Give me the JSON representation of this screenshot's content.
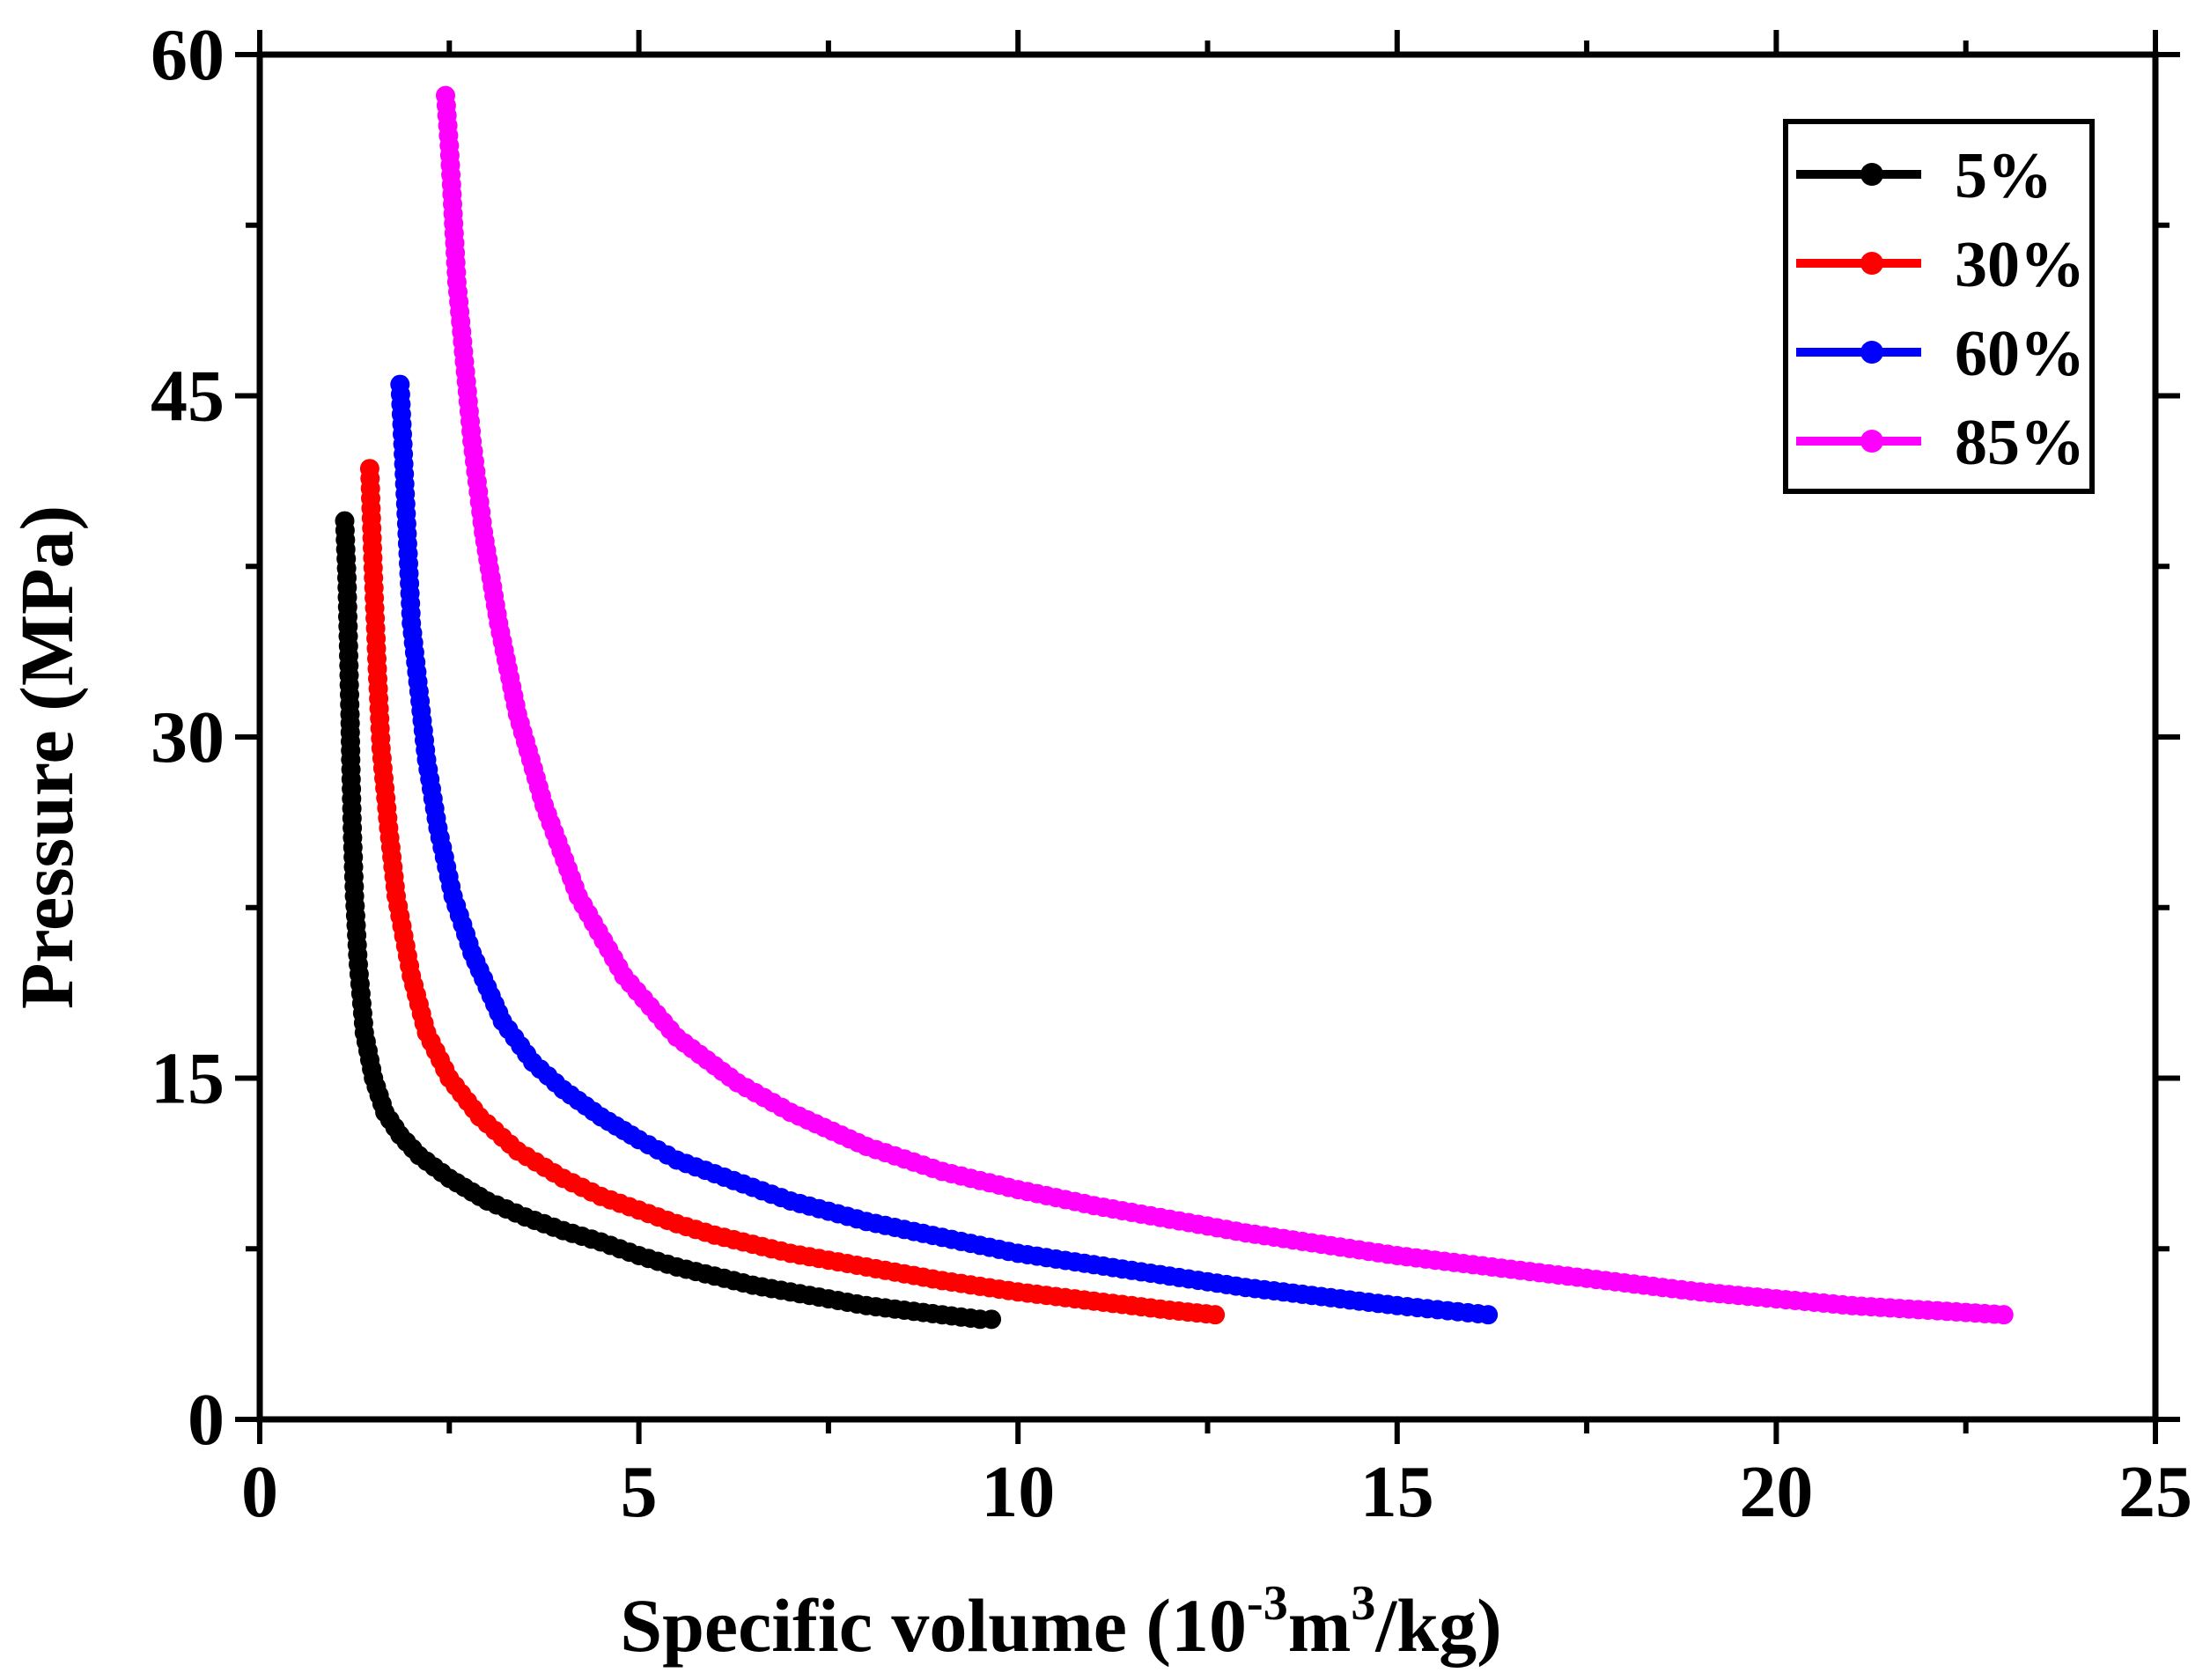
{
  "chart_data": {
    "type": "scatter",
    "title": "",
    "xlabel_main": "Specific volume (10",
    "xlabel_exp1": "-3",
    "xlabel_mid": "m",
    "xlabel_exp2": "3",
    "xlabel_end": "/kg)",
    "ylabel": "Pressure (MPa)",
    "xlim": [
      0,
      25
    ],
    "ylim": [
      0,
      60
    ],
    "xticks": [
      0,
      5,
      10,
      15,
      20,
      25
    ],
    "yticks": [
      0,
      15,
      30,
      45,
      60
    ],
    "xtick_labels": [
      "0",
      "5",
      "10",
      "15",
      "20",
      "25"
    ],
    "ytick_labels": [
      "0",
      "15",
      "30",
      "45",
      "60"
    ],
    "legend_position": "top-right",
    "series": [
      {
        "name": "5%",
        "color": "#000000",
        "x": [
          1.12,
          1.15,
          1.17,
          1.19,
          1.2,
          1.22,
          1.25,
          1.3,
          1.38,
          1.5,
          1.65,
          1.85,
          2.1,
          2.5,
          3.0,
          3.5,
          4.0,
          4.5,
          5.0,
          5.5,
          6.0,
          6.5,
          7.0,
          7.5,
          8.0,
          8.5,
          9.0,
          9.5,
          9.65
        ],
        "y": [
          39.5,
          37.0,
          34.0,
          31.0,
          29.0,
          26.0,
          23.0,
          20.0,
          17.0,
          15.0,
          13.5,
          12.5,
          11.6,
          10.6,
          9.6,
          8.9,
          8.3,
          7.8,
          7.2,
          6.7,
          6.3,
          5.9,
          5.6,
          5.3,
          5.0,
          4.8,
          4.6,
          4.4,
          4.4
        ]
      },
      {
        "name": "30%",
        "color": "#ff0000",
        "x": [
          1.45,
          1.5,
          1.55,
          1.6,
          1.7,
          1.8,
          2.0,
          2.2,
          2.5,
          2.9,
          3.4,
          4.0,
          4.5,
          5.0,
          5.5,
          6.0,
          6.5,
          7.0,
          7.5,
          8.0,
          9.0,
          10.0,
          11.0,
          12.0,
          12.6
        ],
        "y": [
          41.8,
          37.0,
          33.0,
          29.5,
          26.0,
          23.0,
          19.5,
          17.0,
          15.0,
          13.3,
          11.8,
          10.6,
          9.8,
          9.2,
          8.6,
          8.1,
          7.7,
          7.3,
          7.0,
          6.7,
          6.1,
          5.6,
          5.2,
          4.8,
          4.6
        ]
      },
      {
        "name": "60%",
        "color": "#0000ff",
        "x": [
          1.85,
          1.9,
          1.95,
          2.0,
          2.1,
          2.2,
          2.35,
          2.55,
          2.8,
          3.2,
          3.6,
          4.0,
          4.5,
          5.0,
          5.5,
          6.0,
          7.0,
          8.0,
          9.0,
          10.0,
          11.0,
          12.0,
          13.0,
          14.0,
          15.0,
          16.2
        ],
        "y": [
          45.5,
          42.0,
          38.5,
          35.0,
          32.0,
          29.0,
          26.0,
          23.0,
          20.5,
          17.5,
          15.7,
          14.5,
          13.3,
          12.3,
          11.4,
          10.8,
          9.6,
          8.7,
          8.0,
          7.3,
          6.8,
          6.3,
          5.8,
          5.4,
          5.0,
          4.6
        ]
      },
      {
        "name": "85%",
        "color": "#ff00ff",
        "x": [
          2.45,
          2.5,
          2.55,
          2.6,
          2.7,
          2.8,
          2.95,
          3.15,
          3.4,
          3.75,
          4.2,
          4.8,
          5.5,
          6.3,
          7.0,
          8.0,
          9.0,
          10.0,
          11.0,
          12.0,
          13.0,
          14.0,
          15.0,
          16.0,
          17.0,
          18.0,
          19.0,
          20.0,
          21.0,
          22.0,
          23.0
        ],
        "y": [
          58.2,
          56.0,
          53.0,
          50.0,
          46.5,
          43.0,
          39.0,
          35.0,
          31.0,
          27.0,
          23.0,
          19.5,
          16.8,
          14.8,
          13.5,
          12.0,
          10.9,
          10.1,
          9.4,
          8.8,
          8.2,
          7.7,
          7.2,
          6.8,
          6.4,
          6.0,
          5.6,
          5.3,
          5.0,
          4.8,
          4.6
        ]
      }
    ]
  }
}
